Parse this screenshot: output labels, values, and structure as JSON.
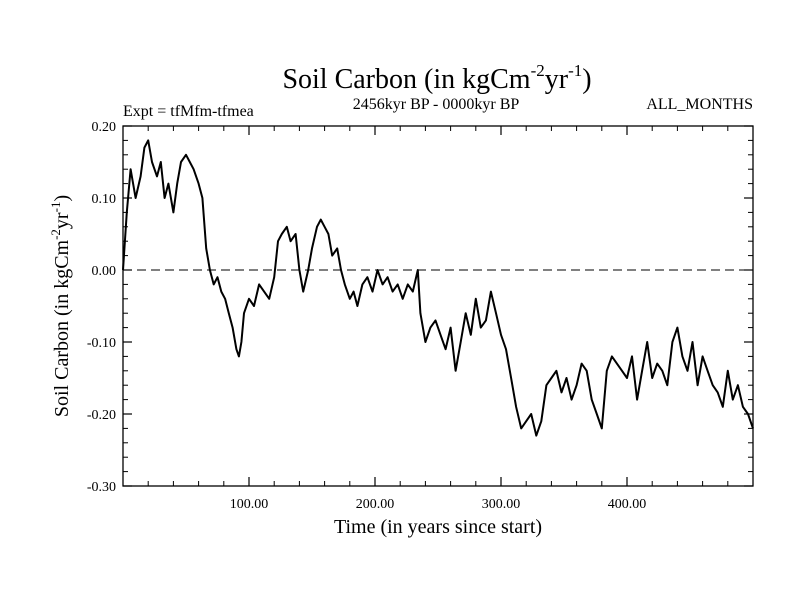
{
  "chart_data": {
    "type": "line",
    "title": {
      "main": "Soil Carbon (in kgCm",
      "exp1": "-2",
      "mid": "yr",
      "exp2": "-1",
      "close": ")"
    },
    "subtitle_left": "Expt = tfMfm-tfmea",
    "subtitle_center": "2456kyr BP - 0000kyr BP",
    "subtitle_right": "ALL_MONTHS",
    "xlabel": "Time (in years since start)",
    "ylabel": {
      "main": "Soil Carbon (in kgCm",
      "exp1": "-2",
      "mid": "yr",
      "exp2": "-1",
      "close": ")"
    },
    "xlim": [
      0,
      500
    ],
    "ylim": [
      -0.3,
      0.2
    ],
    "xticks": [
      100,
      200,
      300,
      400
    ],
    "xtick_labels": [
      "100.00",
      "200.00",
      "300.00",
      "400.00"
    ],
    "yticks": [
      0.2,
      0.1,
      0.0,
      -0.1,
      -0.2,
      -0.3
    ],
    "ytick_labels": [
      "0.20",
      "0.10",
      "0.00",
      "-0.10",
      "-0.20",
      "-0.30"
    ],
    "reference_line": 0.0,
    "series": [
      {
        "name": "Soil Carbon",
        "x": [
          0,
          3,
          6,
          10,
          14,
          17,
          20,
          23,
          27,
          30,
          33,
          36,
          40,
          43,
          46,
          50,
          53,
          56,
          60,
          63,
          66,
          69,
          72,
          75,
          78,
          81,
          84,
          87,
          90,
          92,
          94,
          96,
          100,
          104,
          108,
          112,
          116,
          120,
          123,
          126,
          130,
          133,
          137,
          140,
          143,
          147,
          150,
          154,
          157,
          160,
          163,
          166,
          170,
          173,
          176,
          180,
          183,
          186,
          190,
          194,
          198,
          202,
          206,
          210,
          214,
          218,
          222,
          226,
          230,
          234,
          236,
          240,
          244,
          248,
          252,
          256,
          260,
          264,
          268,
          272,
          276,
          280,
          284,
          288,
          292,
          296,
          300,
          304,
          308,
          312,
          316,
          320,
          324,
          328,
          332,
          336,
          340,
          344,
          348,
          352,
          356,
          360,
          364,
          368,
          372,
          376,
          380,
          384,
          388,
          392,
          396,
          400,
          404,
          408,
          412,
          416,
          420,
          424,
          428,
          432,
          436,
          440,
          444,
          448,
          452,
          456,
          460,
          464,
          468,
          472,
          476,
          480,
          484,
          488,
          492,
          496,
          500
        ],
        "values": [
          0.0,
          0.08,
          0.14,
          0.1,
          0.13,
          0.17,
          0.18,
          0.15,
          0.13,
          0.15,
          0.1,
          0.12,
          0.08,
          0.12,
          0.15,
          0.16,
          0.15,
          0.14,
          0.12,
          0.1,
          0.03,
          0.0,
          -0.02,
          -0.01,
          -0.03,
          -0.04,
          -0.06,
          -0.08,
          -0.11,
          -0.12,
          -0.1,
          -0.06,
          -0.04,
          -0.05,
          -0.02,
          -0.03,
          -0.04,
          -0.01,
          0.04,
          0.05,
          0.06,
          0.04,
          0.05,
          0.0,
          -0.03,
          0.0,
          0.03,
          0.06,
          0.07,
          0.06,
          0.05,
          0.02,
          0.03,
          0.0,
          -0.02,
          -0.04,
          -0.03,
          -0.05,
          -0.02,
          -0.01,
          -0.03,
          0.0,
          -0.02,
          -0.01,
          -0.03,
          -0.02,
          -0.04,
          -0.02,
          -0.03,
          0.0,
          -0.06,
          -0.1,
          -0.08,
          -0.07,
          -0.09,
          -0.11,
          -0.08,
          -0.14,
          -0.1,
          -0.06,
          -0.09,
          -0.04,
          -0.08,
          -0.07,
          -0.03,
          -0.06,
          -0.09,
          -0.11,
          -0.15,
          -0.19,
          -0.22,
          -0.21,
          -0.2,
          -0.23,
          -0.21,
          -0.16,
          -0.15,
          -0.14,
          -0.17,
          -0.15,
          -0.18,
          -0.16,
          -0.13,
          -0.14,
          -0.18,
          -0.2,
          -0.22,
          -0.14,
          -0.12,
          -0.13,
          -0.14,
          -0.15,
          -0.12,
          -0.18,
          -0.14,
          -0.1,
          -0.15,
          -0.13,
          -0.14,
          -0.16,
          -0.1,
          -0.08,
          -0.12,
          -0.14,
          -0.1,
          -0.16,
          -0.12,
          -0.14,
          -0.16,
          -0.17,
          -0.19,
          -0.14,
          -0.18,
          -0.16,
          -0.19,
          -0.2,
          -0.22
        ]
      }
    ],
    "line_color": "#000000",
    "grid": false
  }
}
